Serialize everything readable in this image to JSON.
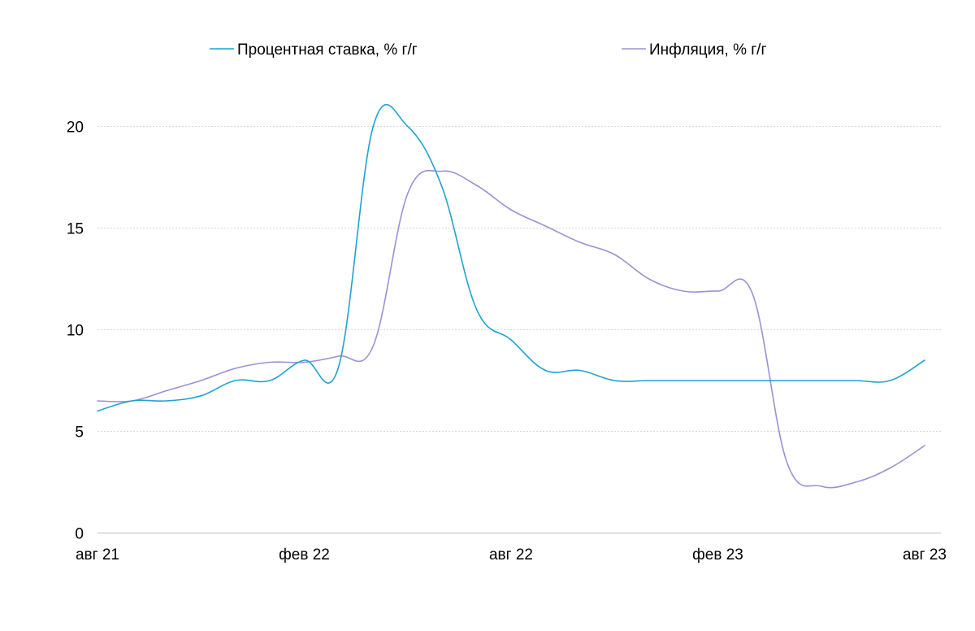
{
  "chart_data": {
    "type": "line",
    "title": "",
    "xlabel": "",
    "ylabel": "",
    "ylim": [
      0,
      20
    ],
    "yticks": [
      0,
      5,
      10,
      15,
      20
    ],
    "grid": true,
    "legend": "top",
    "x_ticks": [
      "авг 21",
      "фев 22",
      "авг 22",
      "фев 23",
      "авг 23"
    ],
    "x": [
      "авг 21",
      "сен 21",
      "окт 21",
      "ноя 21",
      "дек 21",
      "янв 22",
      "фев 22",
      "мар 22",
      "апр 22",
      "май 22",
      "июн 22",
      "июл 22",
      "авг 22",
      "сен 22",
      "окт 22",
      "ноя 22",
      "дек 22",
      "янв 23",
      "фев 23",
      "мар 23",
      "апр 23",
      "май 23",
      "июн 23",
      "июл 23",
      "авг 23"
    ],
    "series": [
      {
        "name": "Процентная ставка, % г/г",
        "color": "#1fa2d0",
        "values": [
          6.0,
          6.5,
          6.5,
          6.75,
          7.5,
          7.5,
          8.5,
          8.2,
          20.0,
          20.0,
          17.0,
          11.0,
          9.5,
          8.0,
          8.0,
          7.5,
          7.5,
          7.5,
          7.5,
          7.5,
          7.5,
          7.5,
          7.5,
          7.5,
          8.5
        ]
      },
      {
        "name": "Инфляция, % г/г",
        "color": "#9b90d6",
        "values": [
          6.5,
          6.5,
          7.0,
          7.5,
          8.1,
          8.4,
          8.4,
          8.7,
          9.2,
          16.7,
          17.8,
          17.1,
          15.9,
          15.1,
          14.3,
          13.7,
          12.5,
          11.9,
          11.9,
          11.8,
          3.5,
          2.3,
          2.5,
          3.2,
          4.3
        ]
      }
    ]
  }
}
